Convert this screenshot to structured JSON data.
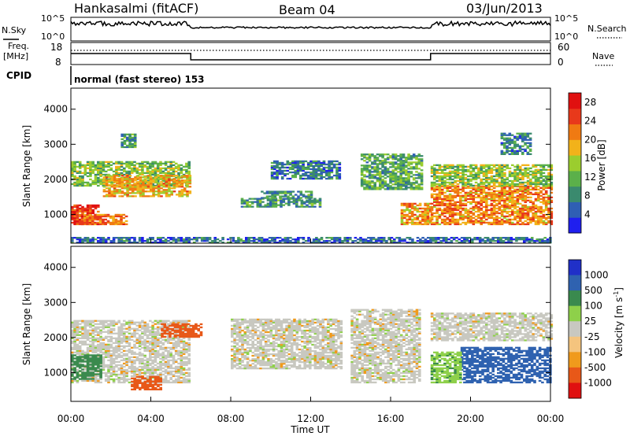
{
  "header": {
    "station": "Hankasalmi (fitACF)",
    "beam": "Beam 04",
    "date": "03/Jun/2013",
    "cpid_label": "CPID",
    "cpid_text": "normal (fast stereo) 153"
  },
  "top_panels": {
    "nsky_label": "N.Sky",
    "nsearch_label": "N.Search",
    "freq_label_line1": "Freq.",
    "freq_label_line2": "[MHz]",
    "nave_label": "Nave",
    "nsky_ticks": [
      "10^5",
      "10^0"
    ],
    "nsearch_ticks": [
      "10^5",
      "10^0"
    ],
    "freq_ticks": [
      "18",
      "8"
    ],
    "nave_ticks": [
      "60",
      "0"
    ]
  },
  "colors": {
    "power_scale": [
      "#1f1fef",
      "#2f5fb4",
      "#3a8a6e",
      "#5bb04a",
      "#9bcd2e",
      "#f2b21a",
      "#f07a12",
      "#e8391b",
      "#e01010"
    ],
    "velocity_scale": [
      "#e01010",
      "#e85818",
      "#f09a1c",
      "#f4c47e",
      "#c8c8c0",
      "#8ed04a",
      "#3a8a4e",
      "#2f62b0",
      "#2030c8"
    ],
    "ground_scatter": "#c0c0b8"
  },
  "chart_data": [
    {
      "type": "heatmap",
      "name": "power",
      "xlabel": "",
      "ylabel": "Slant Range [km]",
      "xlim": [
        "00:00",
        "24:00"
      ],
      "ylim": [
        180,
        4600
      ],
      "y_ticks": [
        1000,
        2000,
        3000,
        4000
      ],
      "colorbar": {
        "label": "Power [dB]",
        "ticks": [
          4,
          8,
          12,
          16,
          20,
          24,
          28
        ],
        "range": [
          0,
          30
        ]
      },
      "regions": [
        {
          "t0": 0.0,
          "t1": 1.4,
          "r0": 700,
          "r1": 1250,
          "value": 26
        },
        {
          "t0": 0.0,
          "t1": 5.9,
          "r0": 1800,
          "r1": 2500,
          "value": 13
        },
        {
          "t0": 1.6,
          "t1": 5.9,
          "r0": 1500,
          "r1": 2100,
          "value": 19
        },
        {
          "t0": 0.5,
          "t1": 2.8,
          "r0": 700,
          "r1": 1000,
          "value": 22
        },
        {
          "t0": 2.5,
          "t1": 3.2,
          "r0": 2900,
          "r1": 3300,
          "value": 10
        },
        {
          "t0": 8.5,
          "t1": 12.5,
          "r0": 1200,
          "r1": 1450,
          "value": 9
        },
        {
          "t0": 9.5,
          "t1": 12.0,
          "r0": 1450,
          "r1": 1650,
          "value": 9
        },
        {
          "t0": 10.0,
          "t1": 13.5,
          "r0": 2000,
          "r1": 2500,
          "value": 7
        },
        {
          "t0": 14.5,
          "t1": 17.5,
          "r0": 1700,
          "r1": 2700,
          "value": 11
        },
        {
          "t0": 16.5,
          "t1": 18.0,
          "r0": 700,
          "r1": 1300,
          "value": 20
        },
        {
          "t0": 18.0,
          "t1": 24.0,
          "r0": 700,
          "r1": 1800,
          "value": 21
        },
        {
          "t0": 18.0,
          "t1": 24.0,
          "r0": 1800,
          "r1": 2400,
          "value": 14
        },
        {
          "t0": 21.5,
          "t1": 23.0,
          "r0": 2700,
          "r1": 3300,
          "value": 8
        },
        {
          "t0": 0.0,
          "t1": 24.0,
          "r0": 180,
          "r1": 330,
          "value": 6
        }
      ]
    },
    {
      "type": "heatmap",
      "name": "velocity",
      "xlabel": "Time UT",
      "ylabel": "Slant Range [km]",
      "xlim": [
        "00:00",
        "24:00"
      ],
      "ylim": [
        180,
        4600
      ],
      "x_ticks": [
        "00:00",
        "04:00",
        "08:00",
        "12:00",
        "16:00",
        "20:00",
        "00:00"
      ],
      "y_ticks": [
        1000,
        2000,
        3000,
        4000
      ],
      "colorbar": {
        "label_main": "Velocity  [m s",
        "label_sup": "-1",
        "label_close": "]",
        "ticks": [
          "1000",
          "500",
          "100",
          "25",
          "-25",
          "-100",
          "-500",
          "-1000"
        ],
        "range": [
          -1000,
          1000
        ]
      },
      "regions": [
        {
          "t0": 0.0,
          "t1": 5.9,
          "r0": 700,
          "r1": 2500,
          "value": 0
        },
        {
          "t0": 0.0,
          "t1": 1.5,
          "r0": 800,
          "r1": 1500,
          "value": 150
        },
        {
          "t0": 4.5,
          "t1": 6.5,
          "r0": 2000,
          "r1": 2400,
          "value": -300
        },
        {
          "t0": 8.0,
          "t1": 13.5,
          "r0": 1100,
          "r1": 2500,
          "value": 0
        },
        {
          "t0": 14.0,
          "t1": 17.5,
          "r0": 700,
          "r1": 2800,
          "value": 0
        },
        {
          "t0": 18.0,
          "t1": 24.0,
          "r0": 1900,
          "r1": 2700,
          "value": 0
        },
        {
          "t0": 19.5,
          "t1": 24.0,
          "r0": 700,
          "r1": 1700,
          "value": 600
        },
        {
          "t0": 18.0,
          "t1": 19.5,
          "r0": 700,
          "r1": 1600,
          "value": 80
        },
        {
          "t0": 3.0,
          "t1": 4.5,
          "r0": 500,
          "r1": 900,
          "value": -150
        }
      ]
    }
  ]
}
